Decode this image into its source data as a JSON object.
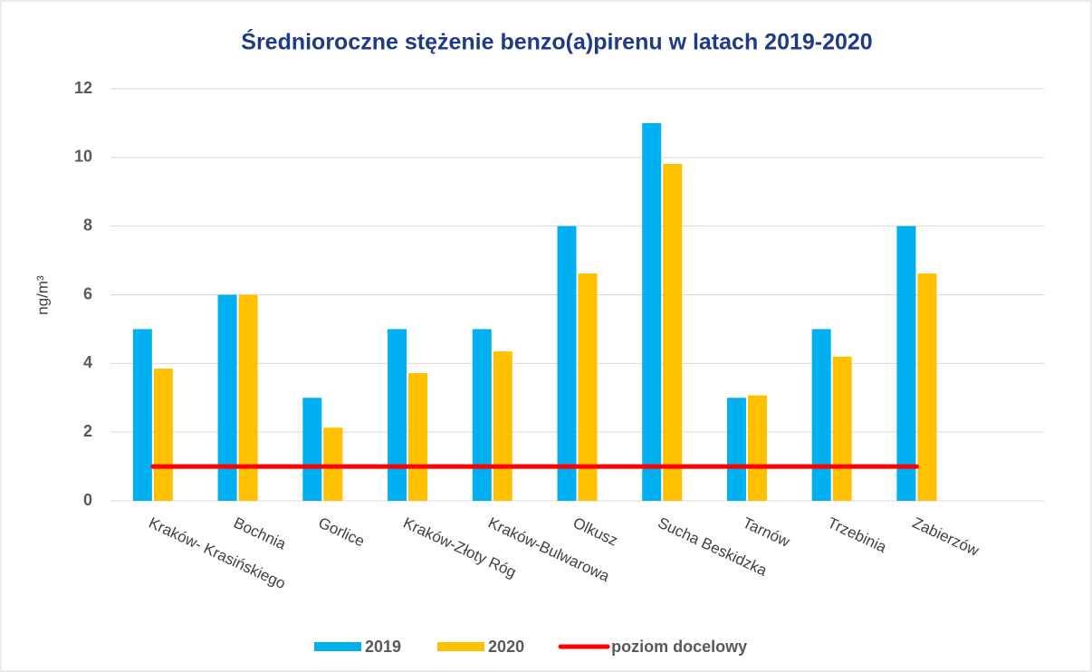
{
  "chart_data": {
    "type": "bar",
    "title": "Średnioroczne stężenie benzo(a)pirenu w latach 2019-2020",
    "y_label": "ng/m³",
    "categories": [
      "Kraków- Krasińskiego",
      "Bochnia",
      "Gorlice",
      "Kraków-Złoty Róg",
      "Kraków-Bulwarowa",
      "Olkusz",
      "Sucha Beskidzka",
      "Tarnów",
      "Trzebinia",
      "Zabierzów",
      null
    ],
    "series": [
      {
        "name": "2019",
        "color": "#00b0f0",
        "type": "bar",
        "values": [
          5,
          6,
          3,
          5,
          5,
          8,
          11,
          3,
          5,
          8,
          null
        ]
      },
      {
        "name": "2020",
        "color": "#ffc000",
        "type": "bar",
        "values": [
          3.85,
          6,
          2.13,
          3.72,
          4.35,
          6.62,
          9.81,
          3.07,
          4.2,
          6.62,
          null
        ]
      },
      {
        "name": "poziom docelowy",
        "color": "#ff0000",
        "type": "line",
        "values": [
          1,
          1,
          1,
          1,
          1,
          1,
          1,
          1,
          1,
          1,
          null
        ]
      }
    ],
    "ylim": [
      0,
      12
    ],
    "yticks": [
      0,
      2,
      4,
      6,
      8,
      10,
      12
    ],
    "grid": true,
    "legend": "bottom"
  }
}
